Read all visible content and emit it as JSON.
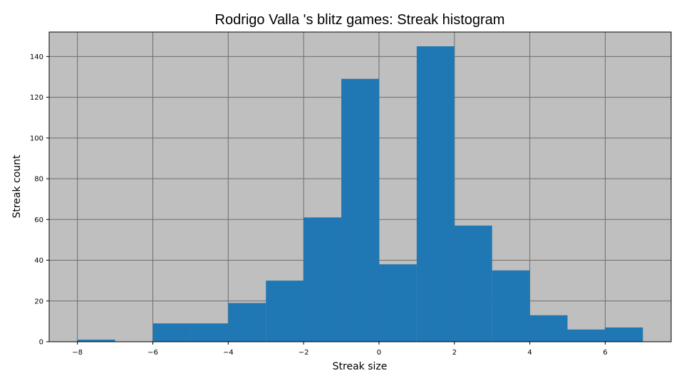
{
  "chart_data": {
    "type": "bar",
    "title": "Rodrigo Valla 's blitz games: Streak histogram",
    "xlabel": "Streak size",
    "ylabel": "Streak count",
    "xlim": [
      -8.75,
      7.75
    ],
    "ylim": [
      0,
      152
    ],
    "xticks": [
      -8,
      -6,
      -4,
      -2,
      0,
      2,
      4,
      6
    ],
    "yticks": [
      0,
      20,
      40,
      60,
      80,
      100,
      120,
      140
    ],
    "xtick_labels": [
      "−8",
      "−6",
      "−4",
      "−2",
      "0",
      "2",
      "4",
      "6"
    ],
    "ytick_labels": [
      "0",
      "20",
      "40",
      "60",
      "80",
      "100",
      "120",
      "140"
    ],
    "grid": true,
    "bins": [
      {
        "x0": -8,
        "x1": -7,
        "count": 1
      },
      {
        "x0": -7,
        "x1": -6,
        "count": 0
      },
      {
        "x0": -6,
        "x1": -5,
        "count": 9
      },
      {
        "x0": -5,
        "x1": -4,
        "count": 9
      },
      {
        "x0": -4,
        "x1": -3,
        "count": 19
      },
      {
        "x0": -3,
        "x1": -2,
        "count": 30
      },
      {
        "x0": -2,
        "x1": -1,
        "count": 61
      },
      {
        "x0": -1,
        "x1": 0,
        "count": 129
      },
      {
        "x0": 0,
        "x1": 1,
        "count": 38
      },
      {
        "x0": 1,
        "x1": 2,
        "count": 145
      },
      {
        "x0": 2,
        "x1": 3,
        "count": 57
      },
      {
        "x0": 3,
        "x1": 4,
        "count": 35
      },
      {
        "x0": 4,
        "x1": 5,
        "count": 13
      },
      {
        "x0": 5,
        "x1": 6,
        "count": 6
      },
      {
        "x0": 6,
        "x1": 7,
        "count": 7
      }
    ],
    "colors": {
      "bar": "#1f77b4",
      "plot_background": "#bfbfbf",
      "grid": "#6e6e6e",
      "axes": "#000000"
    }
  }
}
